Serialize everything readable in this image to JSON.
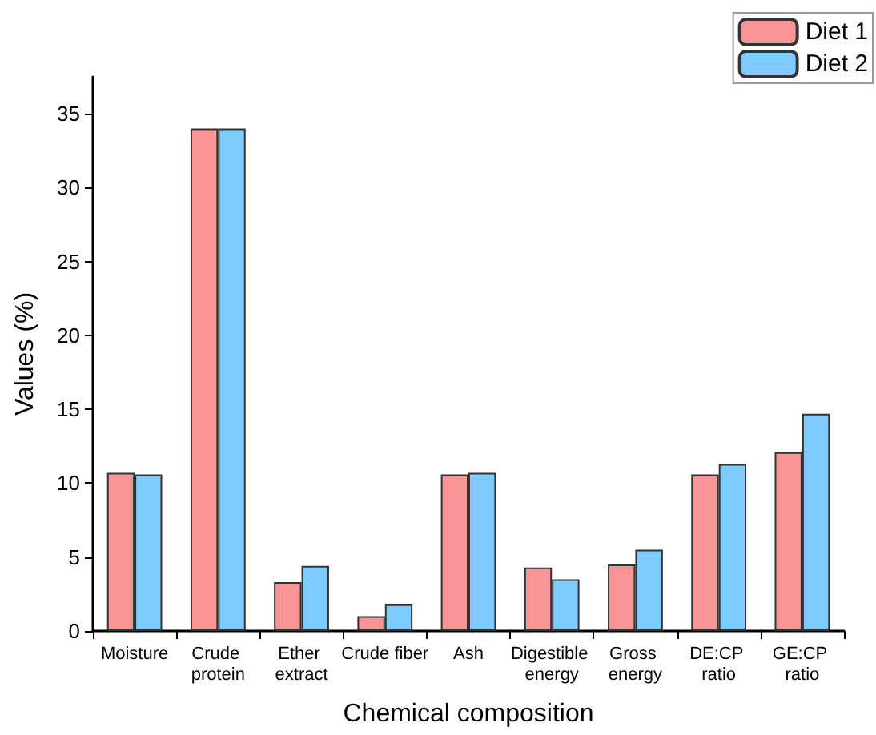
{
  "chart_data": {
    "type": "bar",
    "xlabel": "Chemical composition",
    "ylabel": "Values (%)",
    "categories": [
      "Moisture",
      "Crude protein",
      "Ether extract",
      "Crude fiber",
      "Ash",
      "Digestible energy",
      "Gross energy",
      "DE:CP ratio",
      "GE:CP ratio"
    ],
    "series": [
      {
        "name": "Diet 1",
        "color": "#f89597",
        "values": [
          10.7,
          34,
          3.3,
          1.0,
          10.6,
          4.3,
          4.5,
          10.6,
          12.1
        ]
      },
      {
        "name": "Diet 2",
        "color": "#7fcbfd",
        "values": [
          10.6,
          34,
          4.4,
          1.8,
          10.7,
          3.5,
          5.5,
          11.3,
          14.7
        ]
      }
    ],
    "ylim": [
      0,
      37.5
    ],
    "yticks": [
      0,
      5,
      10,
      15,
      20,
      25,
      30,
      35
    ],
    "grid": false,
    "legend": "top right"
  }
}
